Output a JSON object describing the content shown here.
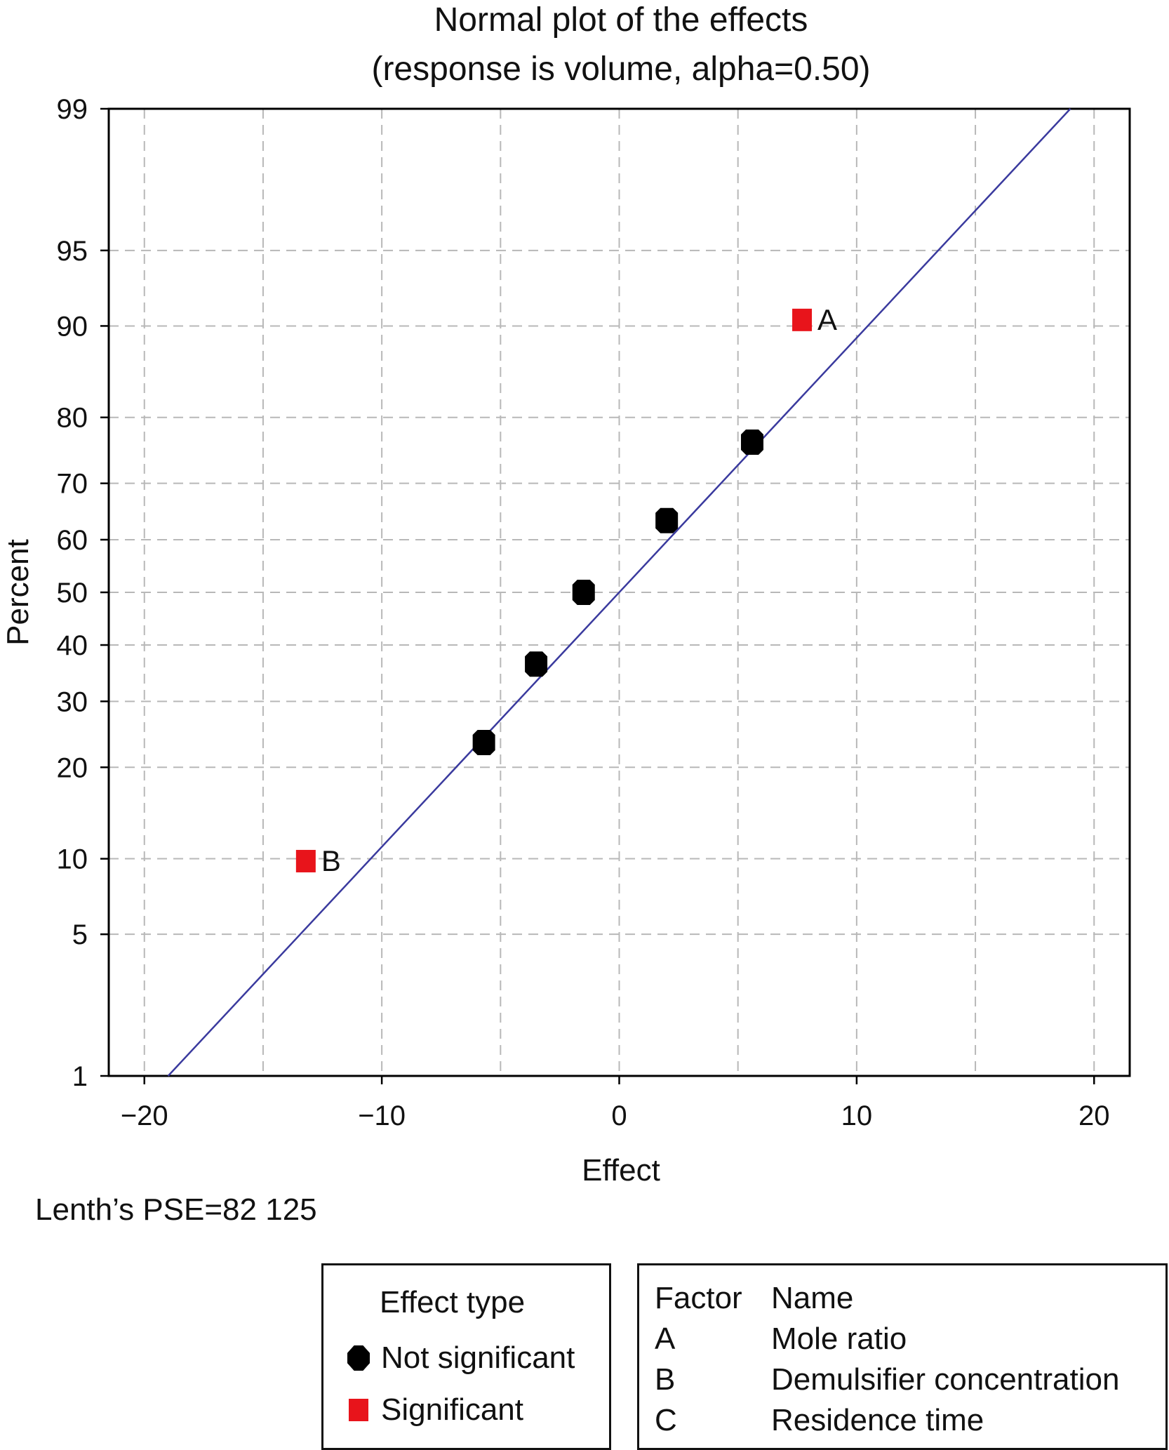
{
  "chart_data": {
    "type": "scatter",
    "title": "Normal plot of the effects",
    "subtitle": "(response is volume, alpha=0.50)",
    "xlabel": "Effect",
    "ylabel": "Percent",
    "xlim": [
      -21.5,
      21.5
    ],
    "x_ticks": [
      -20,
      -10,
      0,
      10,
      20
    ],
    "x_tick_labels": [
      "−20",
      "−10",
      "0",
      "10",
      "20"
    ],
    "y_scale": "normal-probability",
    "ylim": [
      1,
      99
    ],
    "y_ticks": [
      1,
      5,
      10,
      20,
      30,
      40,
      50,
      60,
      70,
      80,
      90,
      95,
      99
    ],
    "x_gridlines": [
      -20,
      -15,
      -10,
      -5,
      0,
      5,
      10,
      15,
      20
    ],
    "grid": true,
    "grid_style": "dashed",
    "fit_line": {
      "from": {
        "x": -19.0,
        "y": 1
      },
      "to": {
        "x": 19.0,
        "y": 99
      },
      "color": "#3a3a9e"
    },
    "points": [
      {
        "x": 7.7,
        "y": 90.5,
        "type": "Significant",
        "label": "A"
      },
      {
        "x": -13.2,
        "y": 9.8,
        "type": "Significant",
        "label": "B"
      },
      {
        "x": 5.6,
        "y": 76.5,
        "type": "Not significant",
        "label": ""
      },
      {
        "x": 2.0,
        "y": 63.5,
        "type": "Not significant",
        "label": ""
      },
      {
        "x": -1.5,
        "y": 50.0,
        "type": "Not significant",
        "label": ""
      },
      {
        "x": -3.5,
        "y": 36.5,
        "type": "Not significant",
        "label": ""
      },
      {
        "x": -5.7,
        "y": 23.5,
        "type": "Not significant",
        "label": ""
      }
    ],
    "colors": {
      "significant": "#e8141b",
      "not_significant": "#000000",
      "line": "#3a3a9e",
      "grid": "#b8b8b8"
    },
    "annotation": "Lenth’s PSE=82 125"
  },
  "legend_effect": {
    "title": "Effect type",
    "items": [
      {
        "label": "Not significant",
        "marker": "black-octagon"
      },
      {
        "label": "Significant",
        "marker": "red-square"
      }
    ]
  },
  "legend_factor": {
    "headers": [
      "Factor",
      "Name"
    ],
    "rows": [
      [
        "A",
        "Mole ratio"
      ],
      [
        "B",
        "Demulsifier concentration"
      ],
      [
        "C",
        "Residence time"
      ]
    ]
  }
}
